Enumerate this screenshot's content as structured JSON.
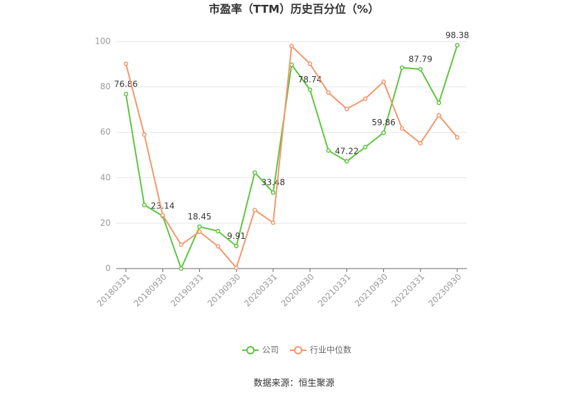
{
  "chart_data": {
    "type": "line",
    "title": "市盈率（TTM）历史百分位（%）",
    "categories": [
      "20180331",
      null,
      "20180930",
      null,
      "20190331",
      null,
      "20190930",
      null,
      "20200331",
      null,
      "20200930",
      null,
      "20210331",
      null,
      "20210930",
      null,
      "20220331",
      null,
      "20230930"
    ],
    "series": [
      {
        "name": "公司",
        "color": "#5cc43b",
        "values": [
          76.86,
          28,
          23.14,
          0,
          18.45,
          16.5,
          9.91,
          42.3,
          33.48,
          89.8,
          78.74,
          52,
          47.22,
          53.5,
          59.86,
          88.5,
          87.79,
          73,
          98.38
        ]
      },
      {
        "name": "行业中位数",
        "color": "#f4956a",
        "values": [
          90.2,
          59,
          23.5,
          10.5,
          16.2,
          9.8,
          0.3,
          25.8,
          20.2,
          98,
          90.2,
          77.5,
          70.3,
          74.8,
          82.3,
          61.7,
          55.2,
          67.5,
          57.8
        ]
      }
    ],
    "ylim": [
      0,
      100
    ],
    "yticks": [
      0,
      20,
      40,
      60,
      80,
      100
    ],
    "grid": true,
    "source": "数据来源：恒生聚源"
  }
}
